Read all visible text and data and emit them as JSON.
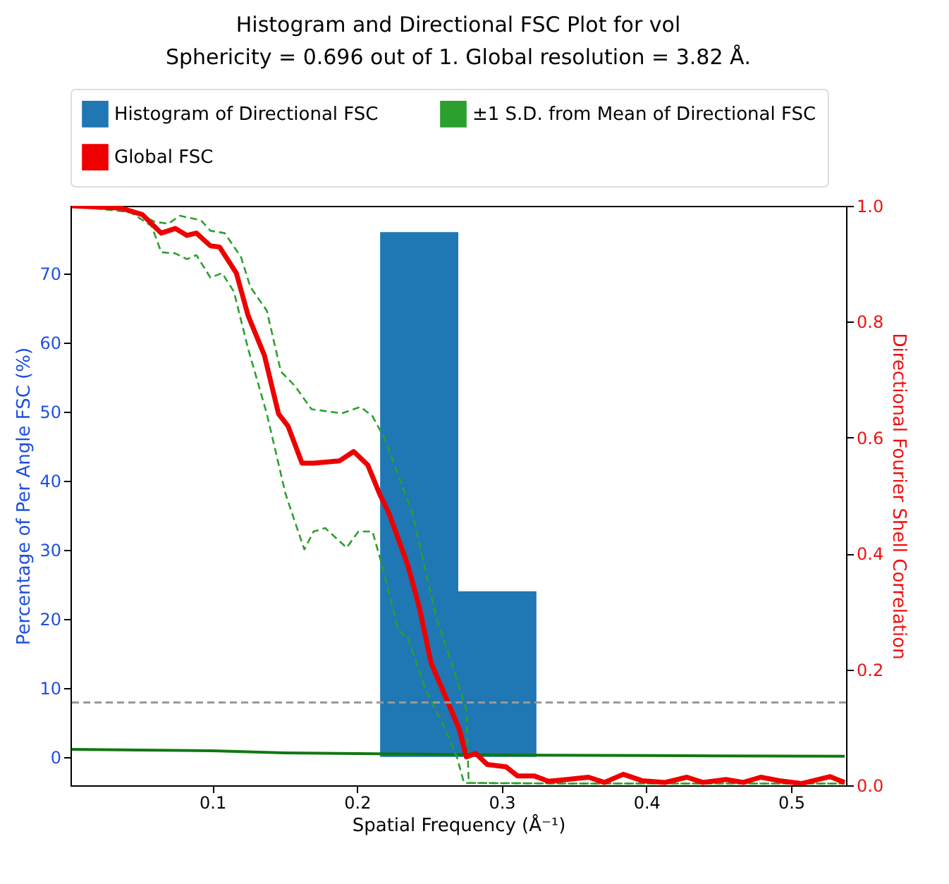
{
  "chart_data": {
    "type": "histogram",
    "title": "Histogram and Directional FSC Plot for vol",
    "subtitle": "Sphericity = 0.696 out of 1. Global resolution = 3.82 Å.",
    "xlabel": "Spatial Frequency (Å⁻¹)",
    "ylabel": "Percentage of Per Angle FSC (%)",
    "y2label": "Directional Fourier Shell Correlation",
    "xlim": [
      0.002,
      0.538
    ],
    "xticks": [
      0.1,
      0.2,
      0.3,
      0.4,
      0.5
    ],
    "ylim": [
      -4.1,
      79.8
    ],
    "yticks": [
      0,
      10,
      20,
      30,
      40,
      50,
      60,
      70
    ],
    "y2lim": [
      0,
      1
    ],
    "y2ticks": [
      {
        "value": 0,
        "label": "0.0"
      },
      0.2,
      0.4,
      0.6,
      0.8,
      {
        "value": 1,
        "label": "1.0"
      }
    ],
    "legend": "top",
    "ref_lines": [
      {
        "axis": "y2",
        "value": 0.143,
        "color": "#999999",
        "line_style": "dashed"
      }
    ],
    "series": [
      {
        "name": "Histogram of Directional FSC",
        "color": "#1f77b4",
        "bins": [
          0.216,
          0.27,
          0.324
        ],
        "values": [
          76,
          24
        ]
      },
      {
        "name": "±1 S.D. from Mean of Directional FSC",
        "type": "line",
        "axis": "y2",
        "color": "#2ca02c",
        "line_style": "dashed",
        "x": [
          0.003,
          0.0435,
          0.0598,
          0.0695,
          0.0776,
          0.0922,
          0.0987,
          0.1085,
          0.1198,
          0.1263,
          0.1377,
          0.1474,
          0.1572,
          0.1685,
          0.1896,
          0.2025,
          0.2107,
          0.2188,
          0.2383,
          0.2545,
          0.2675,
          0.2756,
          0.2772,
          0.35,
          0.45,
          0.537
        ],
        "values": [
          1.0,
          0.993,
          0.973,
          0.969,
          0.983,
          0.975,
          0.957,
          0.953,
          0.912,
          0.86,
          0.819,
          0.714,
          0.689,
          0.649,
          0.642,
          0.653,
          0.637,
          0.6,
          0.47,
          0.292,
          0.195,
          0.13,
          0.004,
          0.003,
          0.003,
          0.003
        ]
      },
      {
        "type": "line",
        "axis": "y2",
        "color": "#2ca02c",
        "line_style": "dashed",
        "x": [
          0.003,
          0.0435,
          0.0581,
          0.0647,
          0.0744,
          0.0825,
          0.089,
          0.0987,
          0.1068,
          0.1149,
          0.1247,
          0.1377,
          0.1506,
          0.1572,
          0.1636,
          0.17,
          0.178,
          0.1928,
          0.201,
          0.2107,
          0.2172,
          0.2285,
          0.235,
          0.248,
          0.261,
          0.269,
          0.274,
          0.35,
          0.45,
          0.537
        ],
        "values": [
          1.0,
          0.989,
          0.965,
          0.92,
          0.918,
          0.908,
          0.915,
          0.876,
          0.884,
          0.852,
          0.754,
          0.641,
          0.503,
          0.454,
          0.407,
          0.438,
          0.444,
          0.41,
          0.438,
          0.438,
          0.381,
          0.268,
          0.255,
          0.162,
          0.097,
          0.049,
          0.004,
          0.003,
          0.003,
          0.003
        ]
      },
      {
        "name": "Global FSC",
        "type": "line",
        "axis": "y2",
        "color": "#ee0000",
        "line_style": "solid",
        "x": [
          0.003,
          0.037,
          0.0516,
          0.0647,
          0.0744,
          0.0825,
          0.089,
          0.0987,
          0.105,
          0.1166,
          0.1247,
          0.136,
          0.1458,
          0.1523,
          0.162,
          0.17,
          0.188,
          0.1977,
          0.2074,
          0.2156,
          0.222,
          0.235,
          0.243,
          0.2512,
          0.261,
          0.2707,
          0.2756,
          0.282,
          0.29,
          0.303,
          0.311,
          0.3227,
          0.3324,
          0.345,
          0.36,
          0.371,
          0.384,
          0.397,
          0.413,
          0.428,
          0.439,
          0.455,
          0.467,
          0.479,
          0.492,
          0.507,
          0.527,
          0.537
        ],
        "values": [
          1.0,
          0.996,
          0.985,
          0.953,
          0.961,
          0.949,
          0.953,
          0.931,
          0.929,
          0.884,
          0.811,
          0.742,
          0.641,
          0.62,
          0.556,
          0.556,
          0.56,
          0.576,
          0.553,
          0.503,
          0.47,
          0.381,
          0.308,
          0.211,
          0.154,
          0.097,
          0.049,
          0.055,
          0.036,
          0.032,
          0.016,
          0.016,
          0.007,
          0.01,
          0.014,
          0.005,
          0.019,
          0.008,
          0.005,
          0.014,
          0.005,
          0.01,
          0.005,
          0.014,
          0.008,
          0.003,
          0.015,
          0.005
        ]
      },
      {
        "type": "line",
        "color": "#117711",
        "line_style": "solid",
        "x": [
          0.003,
          0.05,
          0.1,
          0.15,
          0.2,
          0.3,
          0.4,
          0.537
        ],
        "values": [
          1.1,
          1.0,
          0.9,
          0.6,
          0.5,
          0.3,
          0.2,
          0.1
        ]
      }
    ]
  }
}
